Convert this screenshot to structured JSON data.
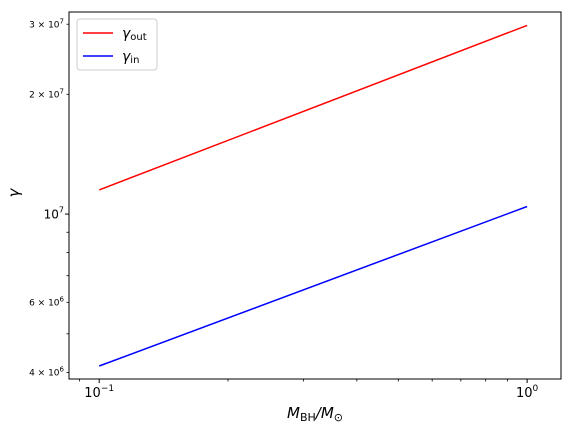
{
  "chart_data": {
    "type": "line",
    "xscale": "log",
    "yscale": "log",
    "xlabel_main": "M",
    "xlabel_sub1": "BH",
    "xlabel_slash": "/M",
    "xlabel_sub2": "⊙",
    "ylabel": "γ",
    "xlim": [
      0.085,
      1.2
    ],
    "ylim": [
      3850000,
      32200000
    ],
    "x_ticks": [
      {
        "value": 0.1,
        "base": "10",
        "exp": "−1"
      },
      {
        "value": 1,
        "base": "10",
        "exp": "0"
      }
    ],
    "y_ticks": [
      {
        "value": 4000000,
        "coef": "4 × 10",
        "exp": "6"
      },
      {
        "value": 6000000,
        "coef": "6 × 10",
        "exp": "6"
      },
      {
        "value": 10000000,
        "coef": "10",
        "exp": "7"
      },
      {
        "value": 20000000,
        "coef": "2 × 10",
        "exp": "7"
      },
      {
        "value": 30000000,
        "coef": "3 × 10",
        "exp": "7"
      }
    ],
    "grid": false,
    "legend_position": "top-left",
    "series": [
      {
        "name": "γ",
        "subscript": "out",
        "color": "#ff0000",
        "x": [
          0.1,
          1
        ],
        "y": [
          11500000,
          29800000
        ]
      },
      {
        "name": "γ",
        "subscript": "in",
        "color": "#0000ff",
        "x": [
          0.1,
          1
        ],
        "y": [
          4150000,
          10450000
        ]
      }
    ]
  }
}
